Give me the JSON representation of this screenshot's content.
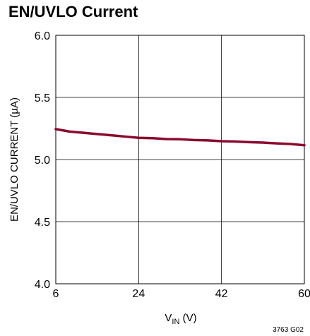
{
  "chart_data": {
    "type": "line",
    "title": "EN/UVLO Current",
    "ylabel": "EN/UVLO CURRENT (µA)",
    "xlabel_main": "V",
    "xlabel_sub": "IN",
    "xlabel_unit": " (V)",
    "figure_code": "3763 G02",
    "xlim": [
      6,
      60
    ],
    "ylim": [
      4.0,
      6.0
    ],
    "x_ticks": [
      6,
      24,
      42,
      60
    ],
    "x_tick_labels": [
      "6",
      "24",
      "42",
      "60"
    ],
    "y_ticks": [
      4.0,
      4.5,
      5.0,
      5.5,
      6.0
    ],
    "y_tick_labels": [
      "4.0",
      "4.5",
      "5.0",
      "5.5",
      "6.0"
    ],
    "grid": true,
    "series": [
      {
        "color": "#8a0a2e",
        "x": [
          6,
          9,
          12,
          15,
          18,
          21,
          24,
          27,
          30,
          33,
          36,
          39,
          42,
          45,
          48,
          51,
          54,
          57,
          60
        ],
        "y": [
          5.245,
          5.225,
          5.215,
          5.205,
          5.195,
          5.185,
          5.175,
          5.172,
          5.165,
          5.163,
          5.157,
          5.154,
          5.148,
          5.145,
          5.14,
          5.136,
          5.13,
          5.125,
          5.115
        ]
      }
    ]
  }
}
